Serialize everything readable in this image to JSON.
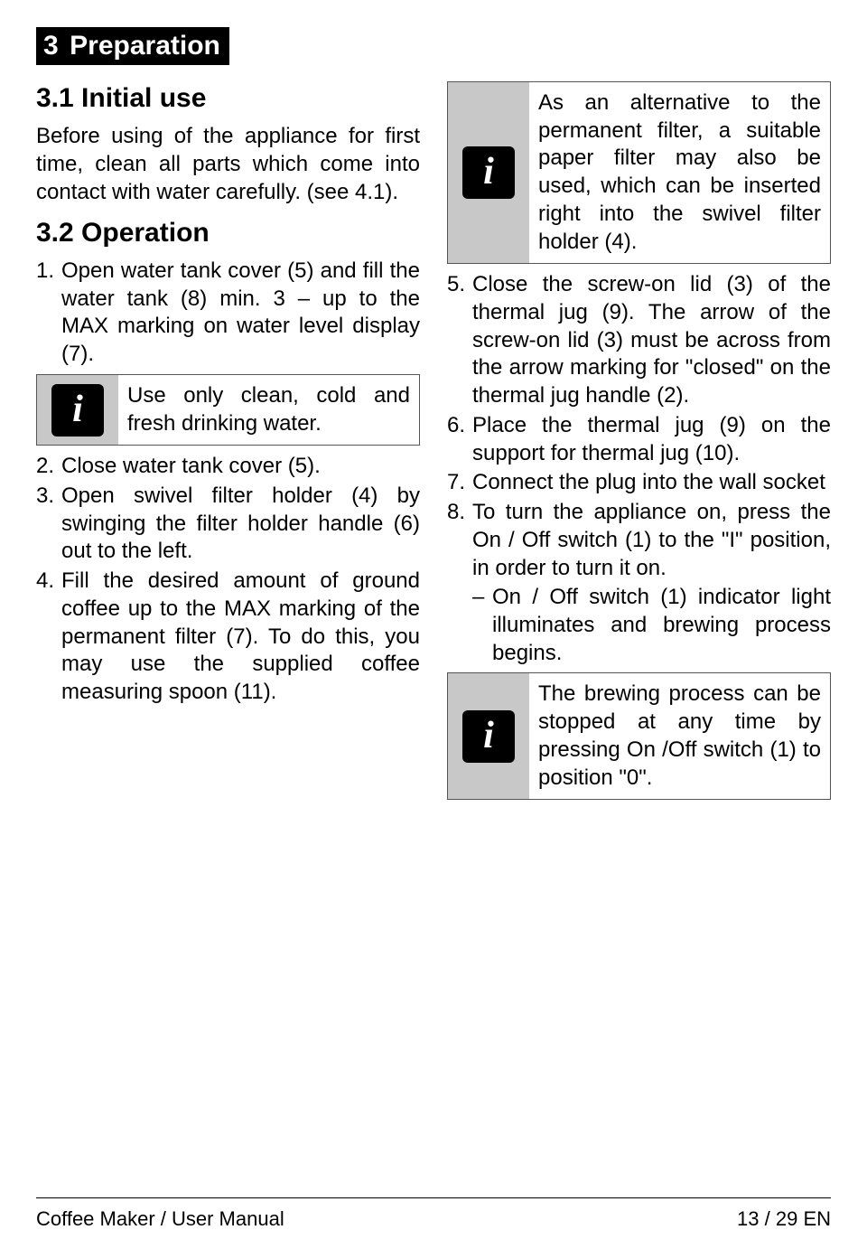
{
  "section": {
    "number": "3",
    "title": "Preparation"
  },
  "leftColumn": {
    "sub1": {
      "heading": "3.1 Initial use"
    },
    "sub1_para": "Before using of the appliance for first time, clean all parts which come into contact with water carefully. (see 4.1).",
    "sub2": {
      "heading": "3.2 Operation"
    },
    "steps": {
      "s1": {
        "num": "1.",
        "text": "Open water tank cover (5) and fill the water tank (8) min. 3 – up to the MAX marking on water level display (7)."
      },
      "info1": "Use only clean, cold and fresh drinking water.",
      "s2": {
        "num": "2.",
        "text": "Close water tank cover (5)."
      },
      "s3": {
        "num": "3.",
        "text": "Open swivel filter holder (4) by swinging the filter holder handle (6) out to the left."
      },
      "s4": {
        "num": "4.",
        "text": "Fill the desired amount of ground coffee up to the MAX marking of the permanent filter (7). To do this, you may use the supplied coffee measuring spoon (11)."
      }
    }
  },
  "rightColumn": {
    "info2": "As an alternative to the permanent filter, a suitable paper filter may also be used, which can be inserted right into the swivel filter holder (4).",
    "steps": {
      "s5": {
        "num": "5.",
        "text": "Close the screw-on lid (3) of the thermal jug (9). The arrow of the screw-on lid (3) must be across from the arrow marking for \"closed\" on the thermal jug handle (2)."
      },
      "s6": {
        "num": "6.",
        "text": "Place the thermal jug (9) on the support for thermal jug (10)."
      },
      "s7": {
        "num": "7.",
        "text": "Connect the plug into the wall socket"
      },
      "s8": {
        "num": "8.",
        "text": "To turn the appliance on, press the On / Off switch (1) to the \"I\" position, in order to turn it on."
      },
      "s8sub": {
        "dash": "–",
        "text": "On / Off switch (1) indicator light illuminates and brewing process begins."
      }
    },
    "info3": "The brewing process can be stopped at any time by pressing On /Off switch (1) to position \"0\"."
  },
  "footer": {
    "left": "Coffee Maker / User Manual",
    "right": "13 / 29  EN"
  }
}
